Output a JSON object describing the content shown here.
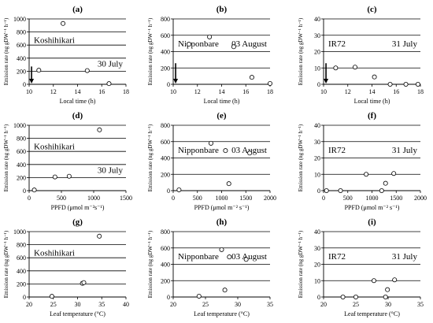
{
  "chart_data": [
    {
      "panel": "(a)",
      "type": "scatter",
      "label_left": "Koshihikari",
      "label_right": "30 July",
      "xlabel": "Local time (h)",
      "ylabel": "Emission rate (ng gDW⁻¹ h⁻¹)",
      "xlim": [
        10,
        18
      ],
      "ylim": [
        0,
        1000
      ],
      "xticks": [
        10,
        12,
        14,
        16,
        18
      ],
      "yticks": [
        0,
        200,
        400,
        600,
        800,
        1000
      ],
      "points": [
        [
          10.8,
          215
        ],
        [
          12.8,
          930
        ],
        [
          14.8,
          210
        ],
        [
          16.6,
          10
        ]
      ],
      "arrow_x": 10.2
    },
    {
      "panel": "(b)",
      "type": "scatter",
      "label_left": "Nipponbare",
      "label_right": "03 August",
      "xlabel": "Local time (h)",
      "ylabel": "Emission rate (ng gDW⁻¹ h⁻¹)",
      "xlim": [
        10,
        18
      ],
      "ylim": [
        0,
        800
      ],
      "xticks": [
        10,
        12,
        14,
        16,
        18
      ],
      "yticks": [
        0,
        200,
        400,
        600,
        800
      ],
      "points": [
        [
          11.3,
          490
        ],
        [
          13,
          580
        ],
        [
          15,
          460
        ],
        [
          16.5,
          85
        ],
        [
          18,
          10
        ]
      ],
      "arrow_x": 10.2
    },
    {
      "panel": "(c)",
      "type": "scatter",
      "label_left": "IR72",
      "label_right": "31 July",
      "xlabel": "Local time (h)",
      "ylabel": "Emission rate (ng gDW⁻¹ h⁻¹)",
      "xlim": [
        10,
        18
      ],
      "ylim": [
        0,
        40
      ],
      "xticks": [
        10,
        12,
        14,
        16,
        18
      ],
      "yticks": [
        0,
        10,
        20,
        30,
        40
      ],
      "points": [
        [
          11,
          10
        ],
        [
          12.6,
          10.5
        ],
        [
          14.2,
          4.5
        ],
        [
          15.5,
          0
        ],
        [
          16.8,
          0
        ],
        [
          17.8,
          0
        ]
      ],
      "arrow_x": 10.2
    },
    {
      "panel": "(d)",
      "type": "scatter",
      "label_left": "Koshihikari",
      "label_right": "30 July",
      "xlabel": "PPFD (μmol m⁻²s⁻¹)",
      "ylabel": "Emission rate (ng gDW⁻¹ h⁻¹)",
      "xlim": [
        0,
        1500
      ],
      "ylim": [
        0,
        1000
      ],
      "xticks": [
        0,
        500,
        1000,
        1500
      ],
      "yticks": [
        0,
        200,
        400,
        600,
        800,
        1000
      ],
      "points": [
        [
          80,
          10
        ],
        [
          400,
          210
        ],
        [
          620,
          220
        ],
        [
          1090,
          930
        ]
      ]
    },
    {
      "panel": "(e)",
      "type": "scatter",
      "label_left": "Nipponbare",
      "label_right": "03 August",
      "xlabel": "PPFD (μmol m⁻² s⁻¹)",
      "ylabel": "Emission rate (ng gDW⁻¹ h⁻¹)",
      "xlim": [
        0,
        2000
      ],
      "ylim": [
        0,
        800
      ],
      "xticks": [
        0,
        500,
        1000,
        1500,
        2000
      ],
      "yticks": [
        0,
        200,
        400,
        600,
        800
      ],
      "points": [
        [
          120,
          10
        ],
        [
          780,
          580
        ],
        [
          1080,
          490
        ],
        [
          1150,
          85
        ],
        [
          1580,
          460
        ]
      ]
    },
    {
      "panel": "(f)",
      "type": "scatter",
      "label_left": "IR72",
      "label_right": "31 July",
      "xlabel": "PPFD (μmol m⁻² s⁻¹)",
      "ylabel": "Emission rate (ng gDW⁻¹ h⁻¹)",
      "xlim": [
        0,
        2000
      ],
      "ylim": [
        0,
        40
      ],
      "xticks": [
        0,
        500,
        1000,
        1500,
        2000
      ],
      "yticks": [
        0,
        10,
        20,
        30,
        40
      ],
      "points": [
        [
          60,
          0
        ],
        [
          350,
          0
        ],
        [
          880,
          10
        ],
        [
          1200,
          0
        ],
        [
          1280,
          4.5
        ],
        [
          1450,
          10.5
        ]
      ]
    },
    {
      "panel": "(g)",
      "type": "scatter",
      "label_left": "Koshihikari",
      "label_right": "",
      "xlabel": "Leaf temperature (°C)",
      "ylabel": "Emission rate (ng gDW⁻¹ h⁻¹)",
      "xlim": [
        20,
        40
      ],
      "ylim": [
        0,
        1000
      ],
      "xticks": [
        20,
        25,
        30,
        35,
        40
      ],
      "yticks": [
        0,
        200,
        400,
        600,
        800,
        1000
      ],
      "points": [
        [
          24.7,
          10
        ],
        [
          31,
          210
        ],
        [
          31.3,
          220
        ],
        [
          34.5,
          930
        ]
      ]
    },
    {
      "panel": "(h)",
      "type": "scatter",
      "label_left": "Nipponbare",
      "label_right": "03 August",
      "xlabel": "Leaf temperature (°C)",
      "ylabel": "Emission rate (ng gDW⁻¹ h⁻¹)",
      "xlim": [
        20,
        35
      ],
      "ylim": [
        0,
        800
      ],
      "xticks": [
        20,
        25,
        30,
        35
      ],
      "yticks": [
        0,
        200,
        400,
        600,
        800
      ],
      "points": [
        [
          24,
          10
        ],
        [
          27.5,
          580
        ],
        [
          28,
          85
        ],
        [
          28.7,
          490
        ],
        [
          31.3,
          460
        ]
      ]
    },
    {
      "panel": "(i)",
      "type": "scatter",
      "label_left": "IR72",
      "label_right": "31 July",
      "xlabel": "Leaf temperature (°C)",
      "ylabel": "Emission rate (ng gDW⁻¹ h⁻¹)",
      "xlim": [
        20,
        35
      ],
      "ylim": [
        0,
        40
      ],
      "xticks": [
        20,
        25,
        30,
        35
      ],
      "yticks": [
        0,
        10,
        20,
        30,
        40
      ],
      "points": [
        [
          23,
          0
        ],
        [
          25,
          0
        ],
        [
          27.8,
          10
        ],
        [
          29.6,
          0
        ],
        [
          29.9,
          4.5
        ],
        [
          31,
          10.5
        ]
      ]
    }
  ]
}
